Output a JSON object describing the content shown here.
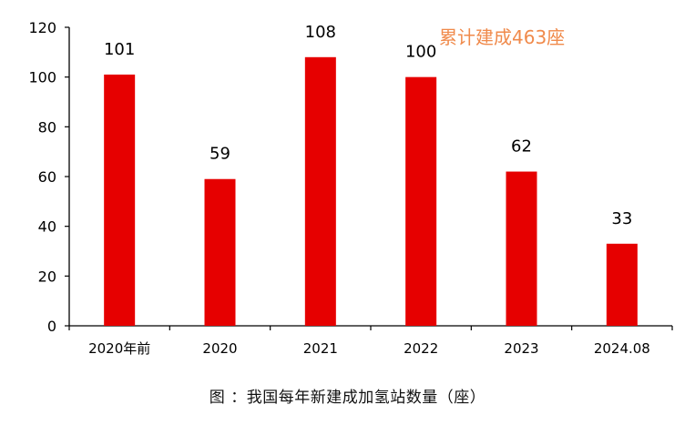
{
  "chart_data": {
    "type": "bar",
    "categories": [
      "2020年前",
      "2020",
      "2021",
      "2022",
      "2023",
      "2024.08"
    ],
    "values": [
      101,
      59,
      108,
      100,
      62,
      33
    ],
    "data_labels": [
      "101",
      "59",
      "108",
      "100",
      "62",
      "33"
    ],
    "y_ticks": [
      "0",
      "20",
      "40",
      "60",
      "80",
      "100",
      "120"
    ],
    "ylim": [
      0,
      120
    ],
    "annotation": "累计建成463座",
    "caption": "图   ：我国每年新建成加氢站数量（座）",
    "grid": false,
    "colors": {
      "bar": "#e60000",
      "annotation": "#f08a4b",
      "axis": "#000000"
    }
  }
}
